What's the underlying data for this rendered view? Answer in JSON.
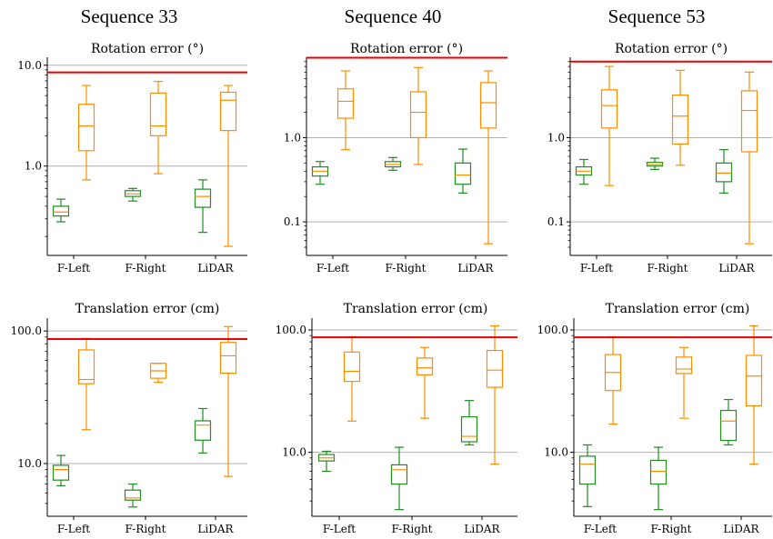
{
  "figure": {
    "sequence_titles": [
      "Sequence 33",
      "Sequence 40",
      "Sequence 53"
    ],
    "colors": {
      "calibrated": "#228b22",
      "uncalibrated": "#ff8c00",
      "threshold": "#ee0000",
      "grid": "#b0b0b0"
    }
  },
  "chart_data": [
    {
      "type": "box",
      "sequence": "Sequence 33",
      "title": "Rotation error (°)",
      "scale": "log",
      "ylim": [
        0.13,
        12
      ],
      "yticks": [
        1,
        10
      ],
      "ytick_labels": [
        "1.0",
        "10.0"
      ],
      "threshold": 8.5,
      "categories": [
        "F-Left",
        "F-Right",
        "LiDAR"
      ],
      "series": [
        {
          "color": "#228b22",
          "boxes": [
            [
              0.28,
              0.32,
              0.35,
              0.4,
              0.47
            ],
            [
              0.45,
              0.5,
              0.53,
              0.57,
              0.6
            ],
            [
              0.22,
              0.39,
              0.5,
              0.59,
              0.73
            ]
          ]
        },
        {
          "color": "#ff8c00",
          "boxes": [
            [
              0.73,
              1.42,
              2.5,
              4.1,
              6.3
            ],
            [
              0.84,
              2.0,
              2.5,
              5.3,
              6.9
            ],
            [
              0.16,
              2.25,
              4.5,
              5.4,
              6.3
            ]
          ]
        }
      ]
    },
    {
      "type": "box",
      "sequence": "Sequence 40",
      "title": "Rotation error (°)",
      "scale": "log",
      "ylim": [
        0.04,
        9
      ],
      "yticks": [
        0.1,
        1
      ],
      "ytick_labels": [
        "0.1",
        "1.0"
      ],
      "threshold": 8.9,
      "categories": [
        "F-Left",
        "F-Right",
        "LiDAR"
      ],
      "series": [
        {
          "color": "#228b22",
          "boxes": [
            [
              0.28,
              0.35,
              0.4,
              0.45,
              0.52
            ],
            [
              0.41,
              0.45,
              0.48,
              0.52,
              0.58
            ],
            [
              0.22,
              0.28,
              0.36,
              0.5,
              0.73
            ]
          ]
        },
        {
          "color": "#ff8c00",
          "boxes": [
            [
              0.72,
              1.7,
              2.7,
              3.8,
              6.2
            ],
            [
              0.48,
              1.0,
              2.0,
              3.5,
              6.8
            ],
            [
              0.055,
              1.3,
              2.6,
              4.5,
              6.2
            ]
          ]
        }
      ]
    },
    {
      "type": "box",
      "sequence": "Sequence 53",
      "title": "Rotation error (°)",
      "scale": "log",
      "ylim": [
        0.04,
        9
      ],
      "yticks": [
        0.1,
        1
      ],
      "ytick_labels": [
        "0.1",
        "1.0"
      ],
      "threshold": 8.0,
      "categories": [
        "F-Left",
        "F-Right",
        "LiDAR"
      ],
      "series": [
        {
          "color": "#228b22",
          "boxes": [
            [
              0.28,
              0.36,
              0.4,
              0.45,
              0.55
            ],
            [
              0.42,
              0.46,
              0.48,
              0.51,
              0.57
            ],
            [
              0.22,
              0.3,
              0.38,
              0.5,
              0.72
            ]
          ]
        },
        {
          "color": "#ff8c00",
          "boxes": [
            [
              0.27,
              1.3,
              2.4,
              3.7,
              7.0
            ],
            [
              0.47,
              0.84,
              1.8,
              3.2,
              6.3
            ],
            [
              0.055,
              0.68,
              2.1,
              3.6,
              6.0
            ]
          ]
        }
      ]
    },
    {
      "type": "box",
      "sequence": "Sequence 33",
      "title": "Translation error (cm)",
      "scale": "log",
      "ylim": [
        4,
        125
      ],
      "yticks": [
        10,
        100
      ],
      "ytick_labels": [
        "10.0",
        "100.0"
      ],
      "threshold": 87,
      "categories": [
        "F-Left",
        "F-Right",
        "LiDAR"
      ],
      "series": [
        {
          "color": "#228b22",
          "boxes": [
            [
              6.8,
              7.5,
              9.0,
              9.7,
              11.5
            ],
            [
              4.7,
              5.3,
              5.5,
              6.3,
              7.0
            ],
            [
              12,
              15,
              19.5,
              21,
              26
            ]
          ]
        },
        {
          "color": "#ff8c00",
          "boxes": [
            [
              18,
              40,
              43,
              72,
              88
            ],
            [
              41,
              44,
              50,
              57,
              57
            ],
            [
              8,
              48,
              65,
              82,
              108
            ]
          ]
        }
      ]
    },
    {
      "type": "box",
      "sequence": "Sequence 40",
      "title": "Translation error (cm)",
      "scale": "log",
      "ylim": [
        3,
        125
      ],
      "yticks": [
        10,
        100
      ],
      "ytick_labels": [
        "10.0",
        "100.0"
      ],
      "threshold": 87,
      "categories": [
        "F-Left",
        "F-Right",
        "LiDAR"
      ],
      "series": [
        {
          "color": "#228b22",
          "boxes": [
            [
              7.0,
              8.5,
              9.0,
              9.6,
              10.2
            ],
            [
              3.4,
              5.5,
              7.2,
              7.9,
              11
            ],
            [
              11.5,
              12.2,
              13.5,
              19.5,
              26.5
            ]
          ]
        },
        {
          "color": "#ff8c00",
          "boxes": [
            [
              18,
              38,
              46,
              66,
              88
            ],
            [
              19,
              43,
              49,
              59,
              72
            ],
            [
              8,
              34,
              47,
              68,
              108
            ]
          ]
        }
      ]
    },
    {
      "type": "box",
      "sequence": "Sequence 53",
      "title": "Translation error (cm)",
      "scale": "log",
      "ylim": [
        3,
        125
      ],
      "yticks": [
        10,
        100
      ],
      "ytick_labels": [
        "10.0",
        "100.0"
      ],
      "threshold": 87,
      "categories": [
        "F-Left",
        "F-Right",
        "LiDAR"
      ],
      "series": [
        {
          "color": "#228b22",
          "boxes": [
            [
              3.6,
              5.5,
              8.0,
              9.3,
              11.5
            ],
            [
              3.4,
              5.5,
              7.0,
              8.6,
              11
            ],
            [
              11.5,
              12.5,
              18,
              22,
              27
            ]
          ]
        },
        {
          "color": "#ff8c00",
          "boxes": [
            [
              17,
              32,
              45,
              63,
              88
            ],
            [
              19,
              44,
              48,
              60,
              72
            ],
            [
              8,
              24,
              42,
              62,
              108
            ]
          ]
        }
      ]
    }
  ]
}
